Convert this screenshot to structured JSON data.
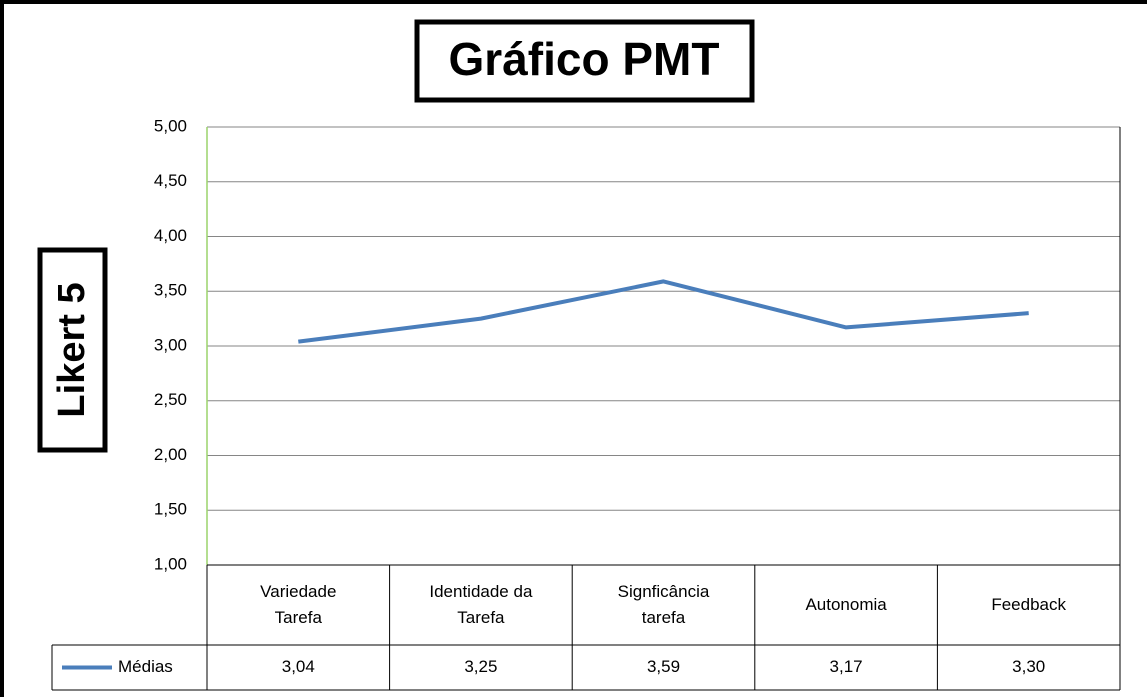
{
  "chart_data": {
    "type": "line",
    "title": "Gráfico PMT",
    "ylabel": "Likert 5",
    "categories": [
      "Variedade Tarefa",
      "Identidade da Tarefa",
      "Signficância tarefa",
      "Autonomia",
      "Feedback"
    ],
    "series": [
      {
        "name": "Médias",
        "color": "#4a7ebb",
        "values": [
          3.04,
          3.25,
          3.59,
          3.17,
          3.3
        ],
        "value_labels": [
          "3,04",
          "3,25",
          "3,59",
          "3,17",
          "3,30"
        ]
      }
    ],
    "ylim": [
      1,
      5
    ],
    "yticks": [
      {
        "value": 1,
        "label": "1,00"
      },
      {
        "value": 1.5,
        "label": "1,50"
      },
      {
        "value": 2,
        "label": "2,00"
      },
      {
        "value": 2.5,
        "label": "2,50"
      },
      {
        "value": 3,
        "label": "3,00"
      },
      {
        "value": 3.5,
        "label": "3,50"
      },
      {
        "value": 4,
        "label": "4,00"
      },
      {
        "value": 4.5,
        "label": "4,50"
      },
      {
        "value": 5,
        "label": "5,00"
      }
    ],
    "grid": true,
    "data_table": true
  }
}
